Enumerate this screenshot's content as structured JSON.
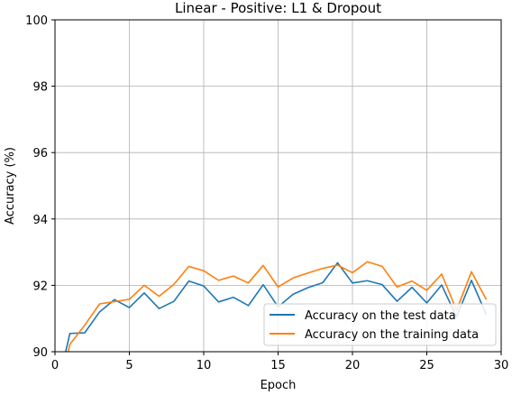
{
  "chart_data": {
    "type": "line",
    "title": "Linear - Positive:  L1 & Dropout",
    "xlabel": "Epoch",
    "ylabel": "Accuracy (%)",
    "xlim": [
      0,
      30
    ],
    "ylim": [
      90,
      100
    ],
    "xticks": [
      0,
      5,
      10,
      15,
      20,
      25,
      30
    ],
    "yticks": [
      90,
      92,
      94,
      96,
      98,
      100
    ],
    "grid": true,
    "legend_position": "bottom-right",
    "x": [
      0,
      1,
      2,
      3,
      4,
      5,
      6,
      7,
      8,
      9,
      10,
      11,
      12,
      13,
      14,
      15,
      16,
      17,
      18,
      19,
      20,
      21,
      22,
      23,
      24,
      25,
      26,
      27,
      28,
      29
    ],
    "series": [
      {
        "name": "Accuracy on the test data",
        "color": "#1f77b4",
        "values": [
          88.6,
          90.55,
          90.57,
          91.2,
          91.57,
          91.33,
          91.77,
          91.3,
          91.52,
          92.13,
          91.98,
          91.5,
          91.64,
          91.39,
          92.02,
          91.35,
          91.73,
          91.93,
          92.08,
          92.68,
          92.07,
          92.14,
          92.02,
          91.52,
          91.94,
          91.47,
          92.01,
          91.05,
          92.15,
          91.12
        ]
      },
      {
        "name": "Accuracy on the training data",
        "color": "#ff7f0e",
        "values": [
          88.2,
          90.22,
          90.8,
          91.44,
          91.51,
          91.58,
          92.0,
          91.67,
          92.03,
          92.57,
          92.44,
          92.15,
          92.28,
          92.07,
          92.6,
          91.95,
          92.22,
          92.37,
          92.51,
          92.61,
          92.38,
          92.71,
          92.57,
          91.95,
          92.13,
          91.85,
          92.34,
          91.25,
          92.41,
          91.57
        ]
      }
    ]
  }
}
